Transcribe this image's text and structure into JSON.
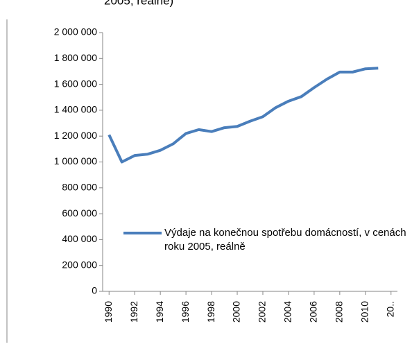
{
  "chart_data": {
    "type": "line",
    "title": "2005, reálně)",
    "x": [
      1990,
      1991,
      1992,
      1993,
      1994,
      1995,
      1996,
      1997,
      1998,
      1999,
      2000,
      2001,
      2002,
      2003,
      2004,
      2005,
      2006,
      2007,
      2008,
      2009,
      2010,
      2011
    ],
    "series": [
      {
        "name": "Výdaje na konečnou spotřebu domácností, v cenách roku 2005, reálně",
        "color": "#4a7ebb",
        "values": [
          1210000,
          1000000,
          1050000,
          1060000,
          1090000,
          1140000,
          1220000,
          1250000,
          1235000,
          1265000,
          1275000,
          1315000,
          1350000,
          1420000,
          1470000,
          1505000,
          1575000,
          1640000,
          1695000,
          1695000,
          1720000,
          1725000
        ]
      }
    ],
    "xlim": [
      1989.5,
      2012.5
    ],
    "xticks": [
      1990,
      1992,
      1994,
      1996,
      1998,
      2000,
      2002,
      2004,
      2006,
      2008,
      2010,
      {
        "value": 2012,
        "label": "20.."
      }
    ],
    "ylim": [
      0,
      2000000
    ],
    "yticks": [
      {
        "value": 0,
        "label": "0"
      },
      {
        "value": 200000,
        "label": "200 000"
      },
      {
        "value": 400000,
        "label": "400 000"
      },
      {
        "value": 600000,
        "label": "600 000"
      },
      {
        "value": 800000,
        "label": "800 000"
      },
      {
        "value": 1000000,
        "label": "1 000 000"
      },
      {
        "value": 1200000,
        "label": "1 200 000"
      },
      {
        "value": 1400000,
        "label": "1 400 000"
      },
      {
        "value": 1600000,
        "label": "1 600 000"
      },
      {
        "value": 1800000,
        "label": "1 800 000"
      },
      {
        "value": 2000000,
        "label": "2 000 000"
      }
    ],
    "legend": "right"
  }
}
